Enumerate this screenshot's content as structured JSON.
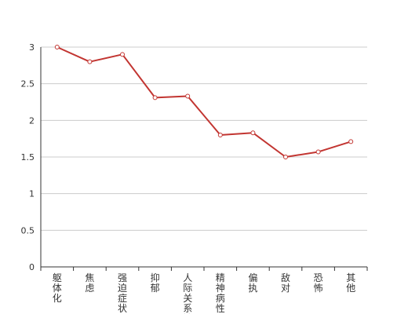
{
  "colors": {
    "line": "#c23531",
    "grid": "#cccccc",
    "axis": "#333333",
    "marker_fill": "#ffffff"
  },
  "chart_data": {
    "type": "line",
    "title": "",
    "xlabel": "",
    "ylabel": "",
    "categories": [
      "躯体化",
      "焦虑",
      "强迫症状",
      "抑郁",
      "人际关系敏",
      "精神病性",
      "偏执",
      "敌对",
      "恐怖",
      "其他"
    ],
    "series": [
      {
        "values": [
          3.0,
          2.8,
          2.9,
          2.31,
          2.33,
          1.8,
          1.83,
          1.5,
          1.57,
          1.71
        ]
      }
    ],
    "ylim": [
      0,
      3
    ],
    "yticks": [
      "0",
      "0.5",
      "1",
      "1.5",
      "2",
      "2.5",
      "3"
    ],
    "grid": true,
    "legend": "none"
  }
}
